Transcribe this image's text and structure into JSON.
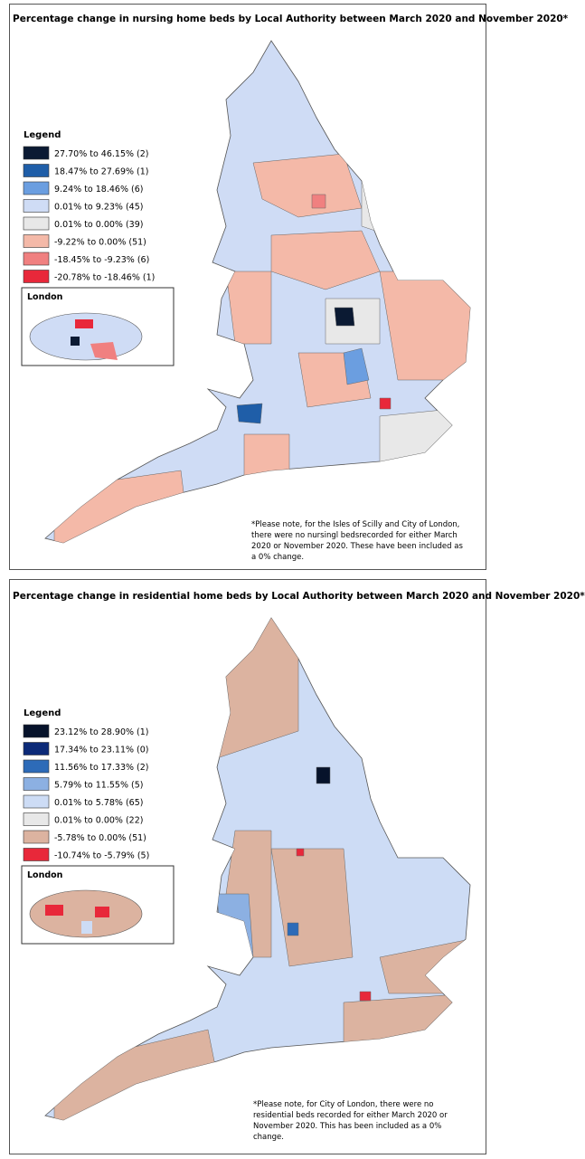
{
  "maps": [
    {
      "title": "Percentage change in nursing home beds by Local Authority between March 2020 and November 2020*",
      "legend_title": "Legend",
      "legend": [
        {
          "label": "27.70% to 46.15% (2)",
          "color": "#0b1a33"
        },
        {
          "label": "18.47% to 27.69% (1)",
          "color": "#1f5ea8"
        },
        {
          "label": "9.24% to 18.46% (6)",
          "color": "#6b9ee0"
        },
        {
          "label": "0.01% to 9.23% (45)",
          "color": "#cfdcf5"
        },
        {
          "label": "0.01% to 0.00% (39)",
          "color": "#e8e8e8"
        },
        {
          "label": "-9.22% to 0.00% (51)",
          "color": "#f4b9a8"
        },
        {
          "label": "-18.45% to -9.23% (6)",
          "color": "#f08080"
        },
        {
          "label": "-20.78% to -18.46% (1)",
          "color": "#e8283a"
        }
      ],
      "inset_title": "London",
      "note": "*Please note, for the Isles of Scilly and City of London, there were no nursingl bedsrecorded for either March 2020 or November 2020. These have been included as a 0% change."
    },
    {
      "title": "Percentage change in residential home beds by Local Authority between March 2020 and November 2020*",
      "legend_title": "Legend",
      "legend": [
        {
          "label": "23.12% to 28.90% (1)",
          "color": "#07132b"
        },
        {
          "label": "17.34% to 23.11% (0)",
          "color": "#0c2a78"
        },
        {
          "label": "11.56% to 17.33% (2)",
          "color": "#2d6bb8"
        },
        {
          "label": "5.79% to 11.55% (5)",
          "color": "#8cb0e2"
        },
        {
          "label": "0.01% to 5.78% (65)",
          "color": "#cddcf5"
        },
        {
          "label": "0.01% to 0.00% (22)",
          "color": "#e8e8e8"
        },
        {
          "label": "-5.78% to 0.00% (51)",
          "color": "#dcb3a0"
        },
        {
          "label": "-10.74% to -5.79% (5)",
          "color": "#e8283a"
        }
      ],
      "inset_title": "London",
      "note": "*Please note, for City of London, there were no residential beds recorded for either March 2020 or November 2020. This has been included as a 0% change."
    }
  ]
}
